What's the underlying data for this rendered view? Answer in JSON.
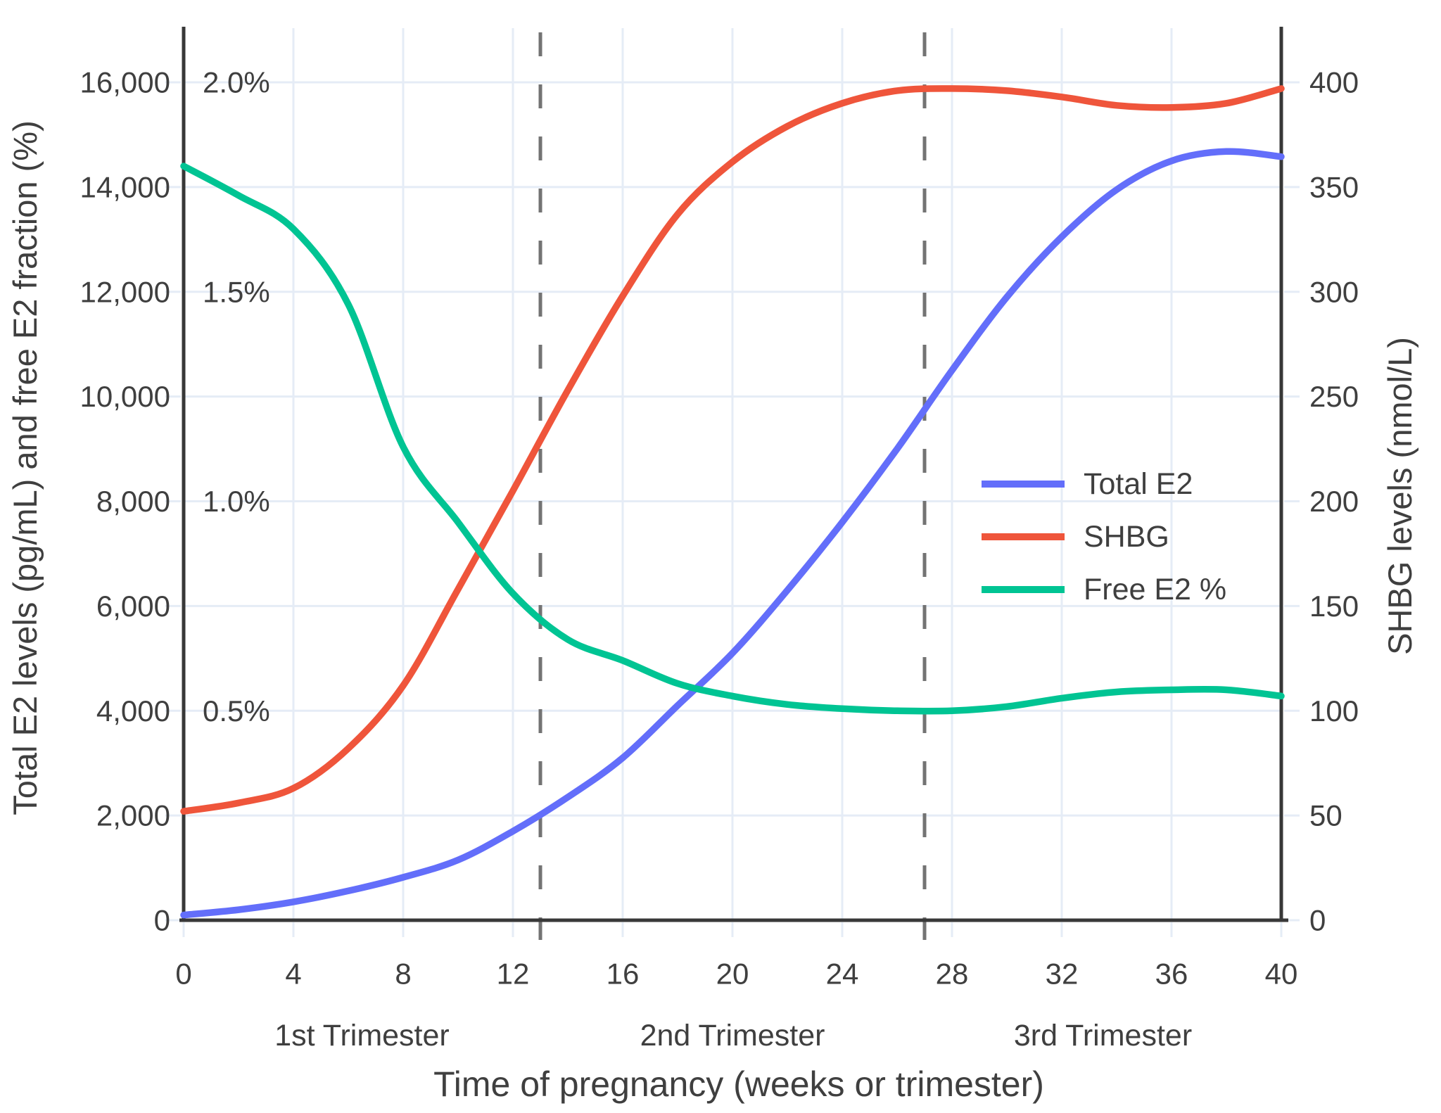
{
  "chart_data": {
    "type": "line",
    "title": "",
    "grid": true,
    "legend_position": "middle-right",
    "x_axis": {
      "label": "Time of pregnancy (weeks or trimester)",
      "range": [
        0,
        40
      ],
      "ticks": [
        0,
        4,
        8,
        12,
        16,
        20,
        24,
        28,
        32,
        36,
        40
      ]
    },
    "y_left": {
      "label": "Total E2 levels (pg/mL) and free E2 fraction (%)",
      "range": [
        0,
        16000
      ],
      "ticks": [
        {
          "label": "0",
          "value": 0
        },
        {
          "label": "2,000",
          "value": 2000
        },
        {
          "label": "4,000",
          "value": 4000
        },
        {
          "label": "6,000",
          "value": 6000
        },
        {
          "label": "8,000",
          "value": 8000
        },
        {
          "label": "10,000",
          "value": 10000
        },
        {
          "label": "12,000",
          "value": 12000
        },
        {
          "label": "14,000",
          "value": 14000
        },
        {
          "label": "16,000",
          "value": 16000
        }
      ]
    },
    "percent_scale": {
      "unit_value": 8000,
      "labels": [
        {
          "label": "0.5%",
          "value": 4000
        },
        {
          "label": "1.0%",
          "value": 8000
        },
        {
          "label": "1.5%",
          "value": 12000
        },
        {
          "label": "2.0%",
          "value": 16000
        }
      ]
    },
    "y_right": {
      "label": "SHBG levels (nmol/L)",
      "range": [
        0,
        400
      ],
      "ticks": [
        0,
        50,
        100,
        150,
        200,
        250,
        300,
        350,
        400
      ]
    },
    "trimesters": {
      "dividers_weeks": [
        13,
        27
      ],
      "labels": [
        {
          "text": "1st Trimester",
          "week": 6.5
        },
        {
          "text": "2nd Trimester",
          "week": 20
        },
        {
          "text": "3rd Trimester",
          "week": 33.5
        }
      ]
    },
    "weeks": [
      0,
      2,
      4,
      6,
      8,
      10,
      12,
      14,
      16,
      18,
      20,
      22,
      24,
      26,
      28,
      30,
      32,
      34,
      36,
      38,
      40
    ],
    "series": [
      {
        "id": "total-e2",
        "name": "Total E2",
        "axis": "left",
        "unit": "pg/mL",
        "color": "#636EFA",
        "values": [
          100,
          200,
          350,
          560,
          820,
          1150,
          1700,
          2350,
          3100,
          4100,
          5100,
          6300,
          7600,
          9000,
          10500,
          11900,
          13050,
          13950,
          14500,
          14680,
          14580
        ]
      },
      {
        "id": "shbg",
        "name": "SHBG",
        "axis": "right",
        "unit": "nmol/L",
        "color": "#EF553B",
        "values": [
          52,
          56,
          63,
          82,
          112,
          158,
          205,
          253,
          298,
          337,
          362,
          379,
          390,
          396,
          397,
          396,
          393,
          389,
          388,
          390,
          397
        ]
      },
      {
        "id": "free-e2-pct",
        "name": "Free E2 %",
        "axis": "percent",
        "unit": "%",
        "color": "#00C493",
        "values": [
          1.8,
          1.73,
          1.65,
          1.47,
          1.13,
          0.95,
          0.78,
          0.67,
          0.62,
          0.565,
          0.535,
          0.515,
          0.505,
          0.5,
          0.5,
          0.51,
          0.53,
          0.545,
          0.55,
          0.55,
          0.535
        ]
      }
    ],
    "style": {
      "grid_color": "#E5ECF6",
      "axis_color": "#383838",
      "divider_color": "#737373",
      "text_color": "#3f3f3f",
      "background": "#ffffff"
    }
  }
}
